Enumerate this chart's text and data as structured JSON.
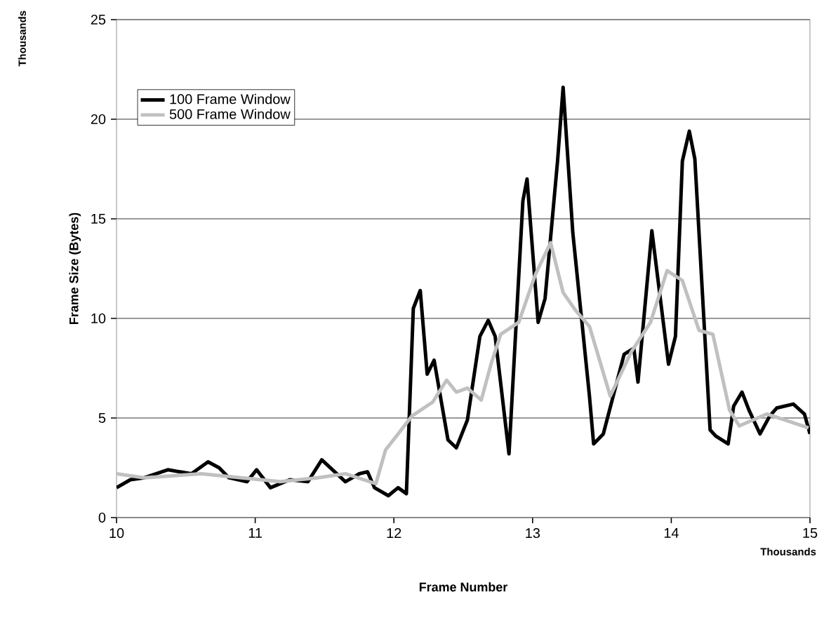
{
  "chart_data": {
    "type": "line",
    "xlabel": "Frame Number",
    "ylabel": "Frame Size (Bytes)",
    "annotations": [
      "Thousands",
      "Thousands"
    ],
    "xlim": [
      10,
      15
    ],
    "xticks": [
      10,
      11,
      12,
      13,
      14,
      15
    ],
    "ylim": [
      0,
      25
    ],
    "yticks": [
      0,
      5,
      10,
      15,
      20,
      25
    ],
    "grid": "y",
    "legend": "top left",
    "marker": "none",
    "line_style": "solid",
    "series": [
      {
        "name": "100 Frame Window",
        "color": "#000000",
        "x": [
          10.0,
          10.1,
          10.2,
          10.37,
          10.54,
          10.66,
          10.74,
          10.81,
          10.94,
          11.01,
          11.11,
          11.25,
          11.38,
          11.48,
          11.65,
          11.75,
          11.81,
          11.86,
          11.96,
          12.03,
          12.09,
          12.14,
          12.19,
          12.24,
          12.29,
          12.39,
          12.45,
          12.53,
          12.62,
          12.68,
          12.73,
          12.83,
          12.93,
          12.96,
          13.04,
          13.09,
          13.18,
          13.22,
          13.29,
          13.41,
          13.44,
          13.51,
          13.66,
          13.73,
          13.76,
          13.86,
          13.98,
          14.03,
          14.08,
          14.13,
          14.17,
          14.28,
          14.32,
          14.41,
          14.45,
          14.51,
          14.56,
          14.64,
          14.71,
          14.76,
          14.88,
          14.96,
          15.0
        ],
        "values": [
          1.5,
          1.9,
          2.0,
          2.4,
          2.2,
          2.8,
          2.5,
          2.0,
          1.8,
          2.4,
          1.5,
          1.9,
          1.8,
          2.9,
          1.8,
          2.2,
          2.3,
          1.5,
          1.1,
          1.5,
          1.2,
          10.5,
          11.4,
          7.2,
          7.9,
          3.9,
          3.5,
          4.9,
          9.1,
          9.9,
          9.1,
          3.2,
          15.9,
          17.0,
          9.8,
          11.0,
          17.9,
          21.6,
          14.3,
          6.1,
          3.7,
          4.2,
          8.2,
          8.5,
          6.8,
          14.4,
          7.7,
          9.1,
          17.9,
          19.4,
          18.0,
          4.4,
          4.1,
          3.7,
          5.6,
          6.3,
          5.4,
          4.2,
          5.1,
          5.5,
          5.7,
          5.2,
          4.2
        ]
      },
      {
        "name": "500 Frame Window",
        "color": "#c0c0c0",
        "x": [
          10.0,
          10.2,
          10.61,
          11.04,
          11.18,
          11.45,
          11.65,
          11.87,
          11.94,
          12.03,
          12.13,
          12.28,
          12.38,
          12.45,
          12.53,
          12.63,
          12.7,
          12.77,
          12.9,
          13.02,
          13.13,
          13.22,
          13.31,
          13.41,
          13.56,
          13.71,
          13.85,
          13.97,
          14.08,
          14.2,
          14.3,
          14.42,
          14.49,
          14.69,
          14.99
        ],
        "values": [
          2.2,
          2.0,
          2.2,
          1.9,
          1.8,
          2.0,
          2.2,
          1.7,
          3.4,
          4.2,
          5.1,
          5.8,
          6.9,
          6.3,
          6.5,
          5.9,
          7.7,
          9.2,
          9.8,
          12.2,
          13.8,
          11.3,
          10.4,
          9.6,
          6.1,
          8.3,
          9.8,
          12.4,
          11.9,
          9.4,
          9.2,
          5.4,
          4.6,
          5.2,
          4.5
        ]
      }
    ]
  }
}
